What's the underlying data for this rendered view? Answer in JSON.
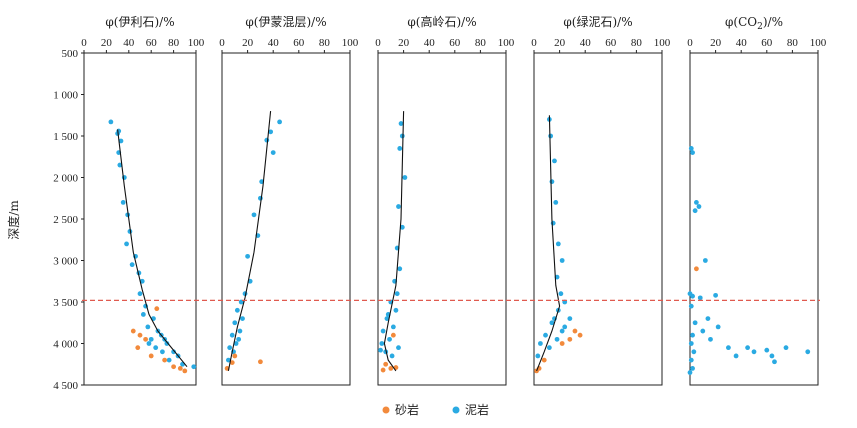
{
  "chart_data": {
    "type": "scatter",
    "ylabel": "深度/m",
    "ylim": [
      500,
      4500
    ],
    "yticks": [
      "500",
      "1 000",
      "1 500",
      "2 000",
      "2 500",
      "3 000",
      "3 500",
      "4 000",
      "4 500"
    ],
    "reference_line": {
      "depth": 3480,
      "style": "dashed",
      "color": "#e05a4f"
    },
    "legend": [
      {
        "name": "砂岩",
        "color": "#f28a3c"
      },
      {
        "name": "泥岩",
        "color": "#2aaae2"
      }
    ],
    "colors": {
      "sandstone": "#f28a3c",
      "mudstone": "#2aaae2",
      "trend": "#111111",
      "dashed": "#e05a4f"
    },
    "panels": [
      {
        "title": "φ(伊利石)/%",
        "xlim": [
          0,
          100
        ],
        "xticks": [
          "0",
          "20",
          "40",
          "60",
          "80",
          "100"
        ],
        "trend": [
          [
            30,
            1420
          ],
          [
            36,
            2100
          ],
          [
            44,
            2900
          ],
          [
            52,
            3350
          ],
          [
            58,
            3650
          ],
          [
            66,
            3850
          ],
          [
            78,
            4050
          ],
          [
            92,
            4280
          ]
        ],
        "mudstone": [
          [
            24,
            1330
          ],
          [
            31,
            1440
          ],
          [
            30,
            1470
          ],
          [
            33,
            1560
          ],
          [
            31,
            1700
          ],
          [
            32,
            1850
          ],
          [
            36,
            2000
          ],
          [
            35,
            2300
          ],
          [
            39,
            2450
          ],
          [
            41,
            2650
          ],
          [
            38,
            2800
          ],
          [
            46,
            2950
          ],
          [
            43,
            3050
          ],
          [
            49,
            3150
          ],
          [
            52,
            3250
          ],
          [
            50,
            3400
          ],
          [
            55,
            3550
          ],
          [
            53,
            3650
          ],
          [
            62,
            3700
          ],
          [
            57,
            3800
          ],
          [
            66,
            3850
          ],
          [
            60,
            3950
          ],
          [
            72,
            3950
          ],
          [
            64,
            4050
          ],
          [
            70,
            4100
          ],
          [
            80,
            4100
          ],
          [
            76,
            4200
          ],
          [
            88,
            4250
          ],
          [
            98,
            4280
          ],
          [
            84,
            4150
          ],
          [
            58,
            4000
          ],
          [
            69,
            3900
          ],
          [
            74,
            4000
          ]
        ],
        "sandstone": [
          [
            44,
            3850
          ],
          [
            50,
            3900
          ],
          [
            55,
            3950
          ],
          [
            48,
            4050
          ],
          [
            60,
            4150
          ],
          [
            72,
            4200
          ],
          [
            86,
            4300
          ],
          [
            90,
            4330
          ],
          [
            65,
            3580
          ],
          [
            80,
            4280
          ]
        ]
      },
      {
        "title": "φ(伊蒙混层)/%",
        "xlim": [
          0,
          100
        ],
        "xticks": [
          "0",
          "20",
          "40",
          "60",
          "80",
          "100"
        ],
        "trend": [
          [
            38,
            1200
          ],
          [
            32,
            2100
          ],
          [
            25,
            2900
          ],
          [
            18,
            3450
          ],
          [
            12,
            3800
          ],
          [
            8,
            4100
          ],
          [
            5,
            4330
          ]
        ],
        "mudstone": [
          [
            45,
            1330
          ],
          [
            38,
            1450
          ],
          [
            35,
            1550
          ],
          [
            40,
            1700
          ],
          [
            31,
            2050
          ],
          [
            30,
            2250
          ],
          [
            25,
            2450
          ],
          [
            28,
            2700
          ],
          [
            20,
            2950
          ],
          [
            22,
            3250
          ],
          [
            18,
            3400
          ],
          [
            15,
            3500
          ],
          [
            12,
            3600
          ],
          [
            16,
            3700
          ],
          [
            10,
            3750
          ],
          [
            14,
            3850
          ],
          [
            8,
            3900
          ],
          [
            11,
            4000
          ],
          [
            6,
            4050
          ],
          [
            9,
            4100
          ],
          [
            5,
            4200
          ],
          [
            13,
            3950
          ]
        ],
        "sandstone": [
          [
            8,
            4230
          ],
          [
            30,
            4220
          ],
          [
            4,
            4300
          ],
          [
            10,
            4150
          ]
        ]
      },
      {
        "title": "φ(高岭石)/%",
        "xlim": [
          0,
          100
        ],
        "xticks": [
          "0",
          "20",
          "40",
          "60",
          "80",
          "100"
        ],
        "trend": [
          [
            20,
            1200
          ],
          [
            18,
            2500
          ],
          [
            14,
            3300
          ],
          [
            8,
            3750
          ],
          [
            5,
            4000
          ],
          [
            8,
            4200
          ],
          [
            14,
            4330
          ]
        ],
        "mudstone": [
          [
            18,
            1350
          ],
          [
            19,
            1500
          ],
          [
            17,
            1650
          ],
          [
            21,
            2000
          ],
          [
            16,
            2350
          ],
          [
            19,
            2600
          ],
          [
            15,
            2850
          ],
          [
            17,
            3100
          ],
          [
            13,
            3250
          ],
          [
            15,
            3400
          ],
          [
            10,
            3500
          ],
          [
            14,
            3600
          ],
          [
            7,
            3700
          ],
          [
            12,
            3800
          ],
          [
            4,
            3850
          ],
          [
            9,
            3950
          ],
          [
            3,
            4000
          ],
          [
            16,
            4050
          ],
          [
            6,
            4100
          ],
          [
            11,
            4150
          ],
          [
            2,
            4080
          ],
          [
            8,
            3650
          ]
        ],
        "sandstone": [
          [
            6,
            4250
          ],
          [
            10,
            4300
          ],
          [
            14,
            4290
          ],
          [
            4,
            4320
          ],
          [
            12,
            3900
          ]
        ]
      },
      {
        "title": "φ(绿泥石)/%",
        "xlim": [
          0,
          100
        ],
        "xticks": [
          "0",
          "20",
          "40",
          "60",
          "80",
          "100"
        ],
        "trend": [
          [
            12,
            1250
          ],
          [
            14,
            2500
          ],
          [
            17,
            3300
          ],
          [
            20,
            3550
          ],
          [
            14,
            3850
          ],
          [
            8,
            4100
          ],
          [
            2,
            4330
          ]
        ],
        "mudstone": [
          [
            12,
            1300
          ],
          [
            13,
            1500
          ],
          [
            16,
            1800
          ],
          [
            14,
            2050
          ],
          [
            17,
            2300
          ],
          [
            15,
            2550
          ],
          [
            19,
            2800
          ],
          [
            22,
            3000
          ],
          [
            18,
            3200
          ],
          [
            21,
            3400
          ],
          [
            24,
            3500
          ],
          [
            19,
            3600
          ],
          [
            28,
            3700
          ],
          [
            14,
            3750
          ],
          [
            22,
            3850
          ],
          [
            9,
            3900
          ],
          [
            18,
            3950
          ],
          [
            5,
            4000
          ],
          [
            12,
            4050
          ],
          [
            24,
            3800
          ],
          [
            16,
            3700
          ],
          [
            3,
            4150
          ]
        ],
        "sandstone": [
          [
            32,
            3850
          ],
          [
            36,
            3900
          ],
          [
            28,
            3950
          ],
          [
            22,
            4000
          ],
          [
            8,
            4200
          ],
          [
            4,
            4300
          ],
          [
            2,
            4330
          ]
        ]
      },
      {
        "title": "φ(CO",
        "title_sub": "2",
        "title_end": ")/%",
        "xlim": [
          0,
          100
        ],
        "xticks": [
          "0",
          "20",
          "40",
          "60",
          "80",
          "100"
        ],
        "mudstone": [
          [
            1,
            1650
          ],
          [
            2,
            1700
          ],
          [
            5,
            2300
          ],
          [
            7,
            2350
          ],
          [
            4,
            2400
          ],
          [
            12,
            3000
          ],
          [
            0,
            3400
          ],
          [
            2,
            3430
          ],
          [
            20,
            3420
          ],
          [
            8,
            3450
          ],
          [
            1,
            3550
          ],
          [
            14,
            3700
          ],
          [
            4,
            3750
          ],
          [
            22,
            3800
          ],
          [
            10,
            3850
          ],
          [
            2,
            3900
          ],
          [
            16,
            3950
          ],
          [
            30,
            4050
          ],
          [
            45,
            4050
          ],
          [
            60,
            4080
          ],
          [
            75,
            4050
          ],
          [
            92,
            4100
          ],
          [
            64,
            4150
          ],
          [
            66,
            4220
          ],
          [
            50,
            4100
          ],
          [
            36,
            4150
          ],
          [
            1,
            4000
          ],
          [
            3,
            4100
          ],
          [
            1,
            4200
          ],
          [
            2,
            4300
          ],
          [
            0,
            4350
          ]
        ],
        "sandstone": [
          [
            5,
            3100
          ]
        ]
      }
    ]
  }
}
